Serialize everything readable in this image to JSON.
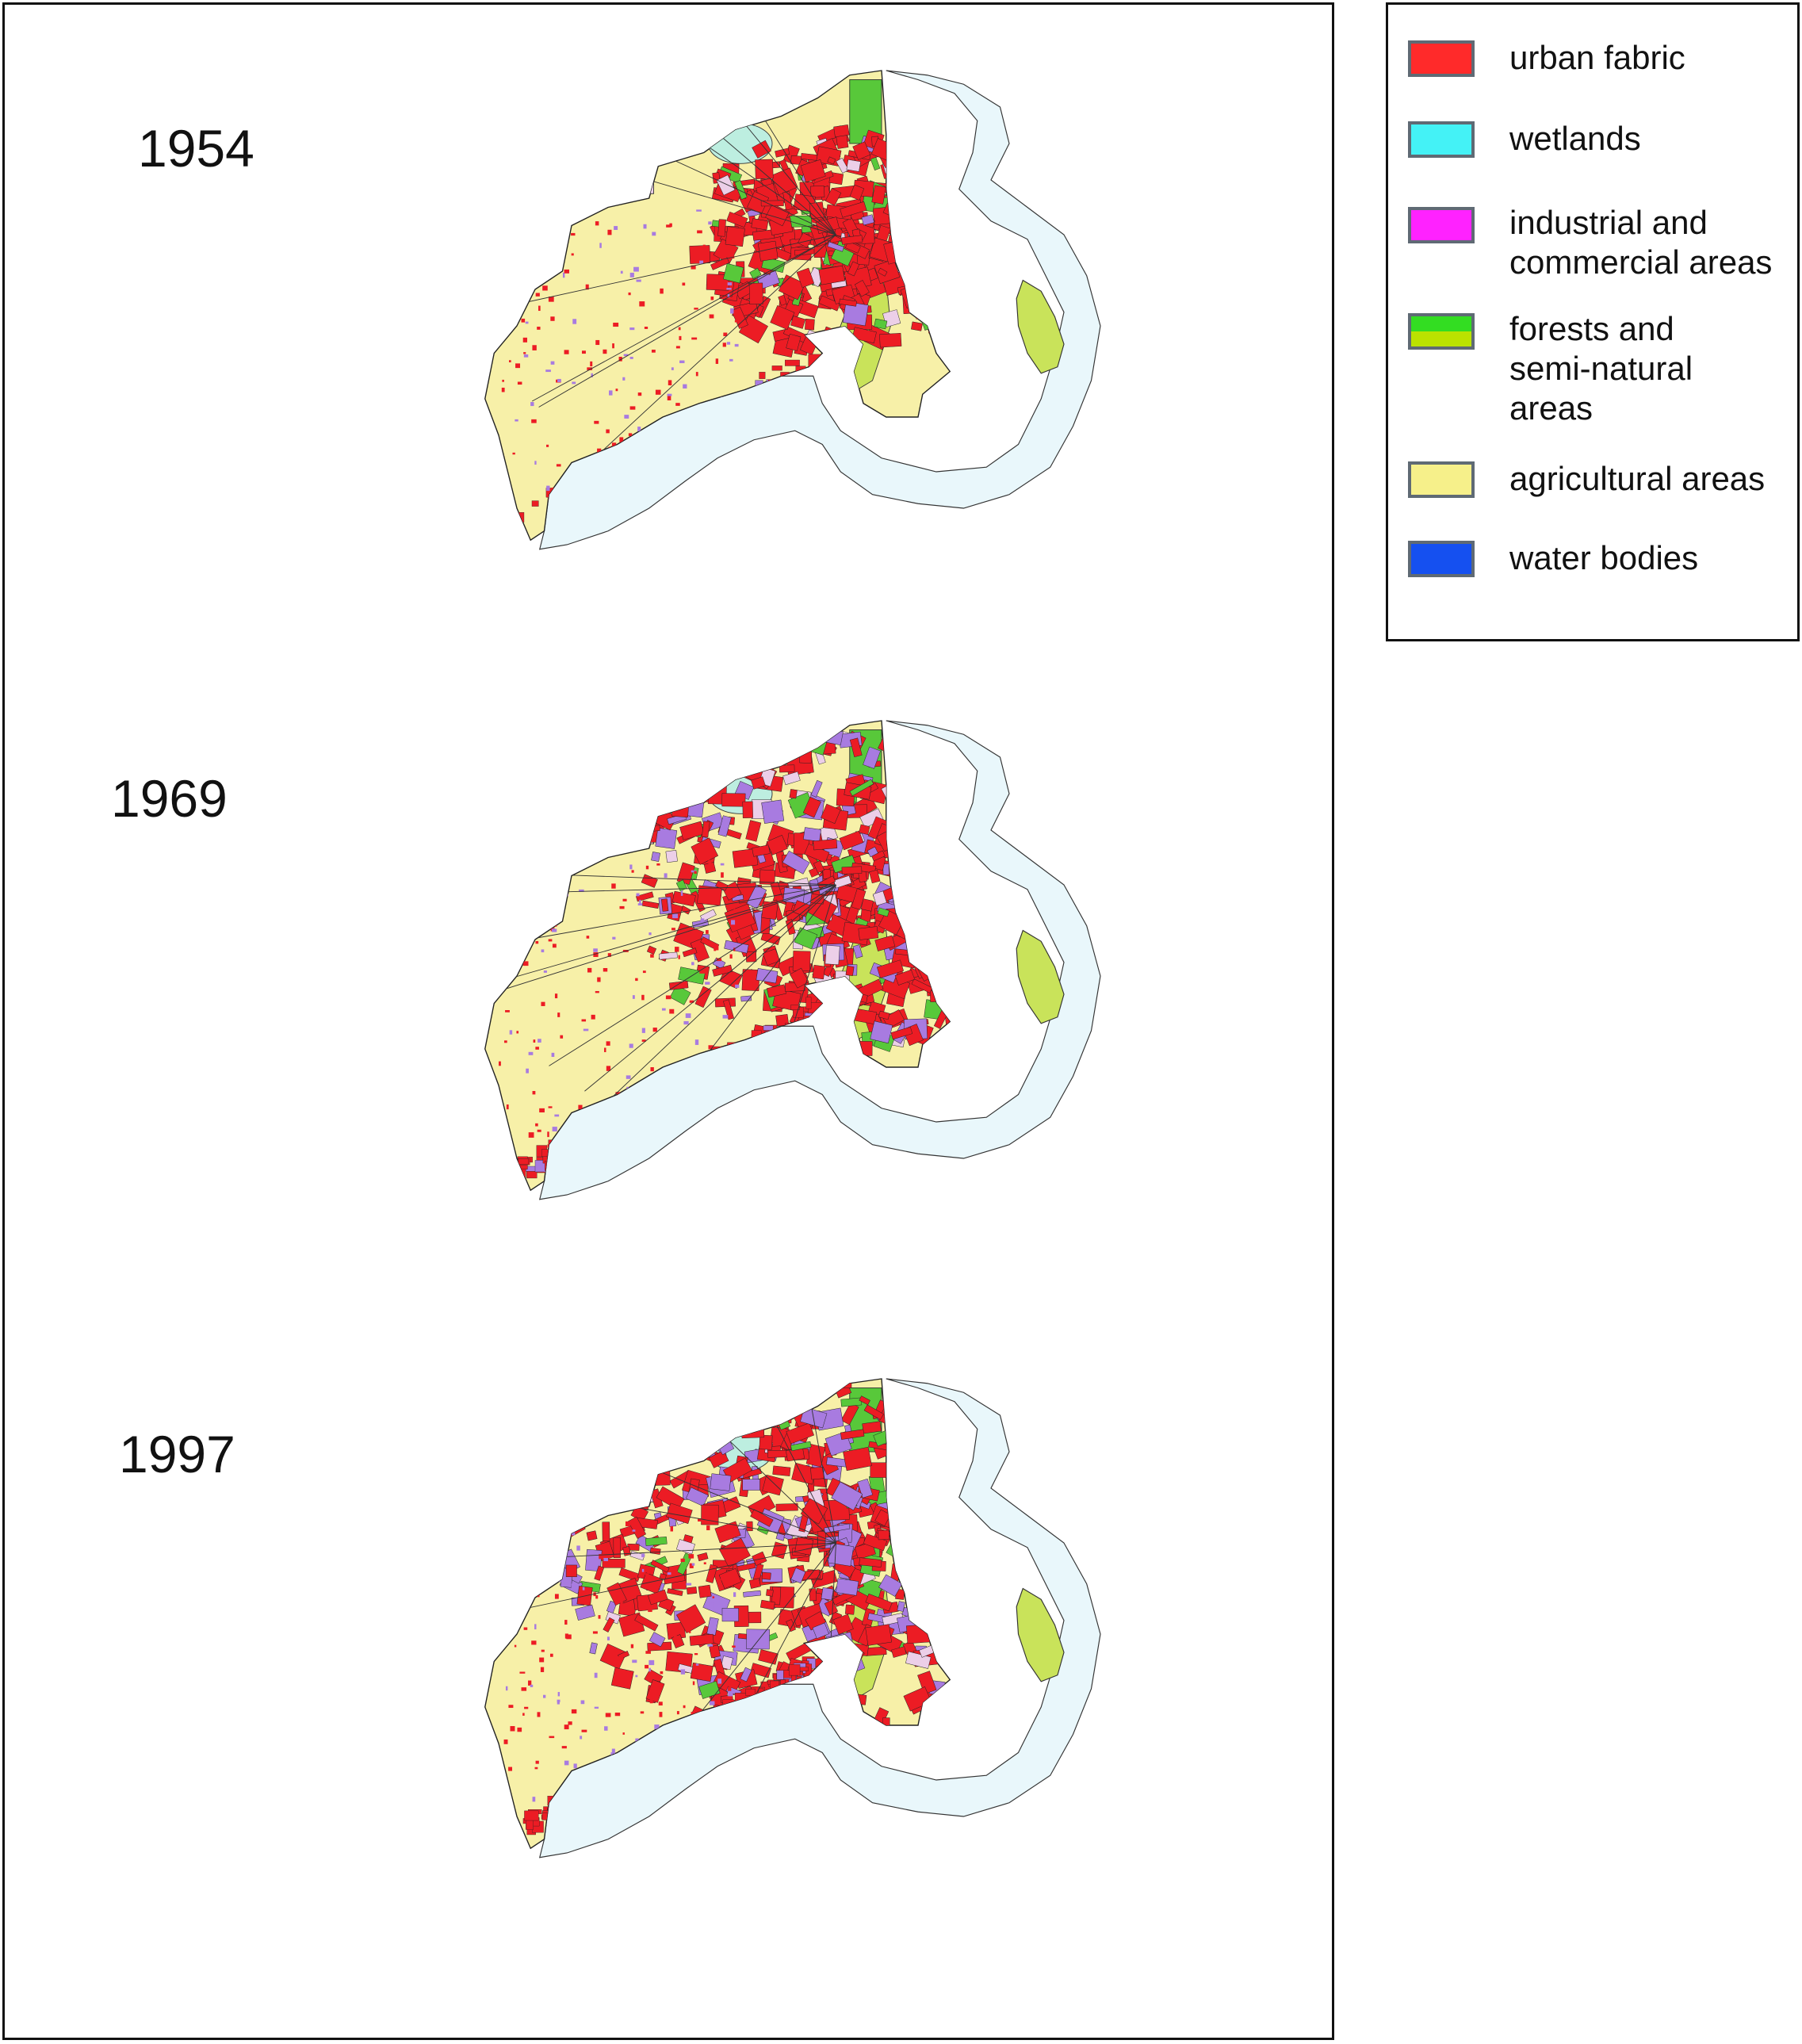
{
  "figure": {
    "panels": [
      {
        "year": "1954"
      },
      {
        "year": "1969"
      },
      {
        "year": "1997"
      }
    ]
  },
  "legend": {
    "items": [
      {
        "label": "urban fabric",
        "color": "#ff2a2a"
      },
      {
        "label": "wetlands",
        "color": "#44f2f6"
      },
      {
        "label": "industrial and\ncommercial areas",
        "color": "#ff22ff"
      },
      {
        "label": "forests and\nsemi-natural\nareas",
        "color": "#33dd22",
        "color2": "#bbe200"
      },
      {
        "label": "agricultural areas",
        "color": "#f6f08a"
      },
      {
        "label": "water bodies",
        "color": "#1550f0"
      }
    ]
  },
  "map_colors": {
    "sea": "#e9f7fb",
    "land_agri": "#f7f0a8",
    "urban": "#ec1c24",
    "industrial": "#a87be0",
    "forest": "#c9e35a",
    "forest_dark": "#58c83a",
    "wetland": "#bdeee0",
    "special": "#eccfe8"
  }
}
